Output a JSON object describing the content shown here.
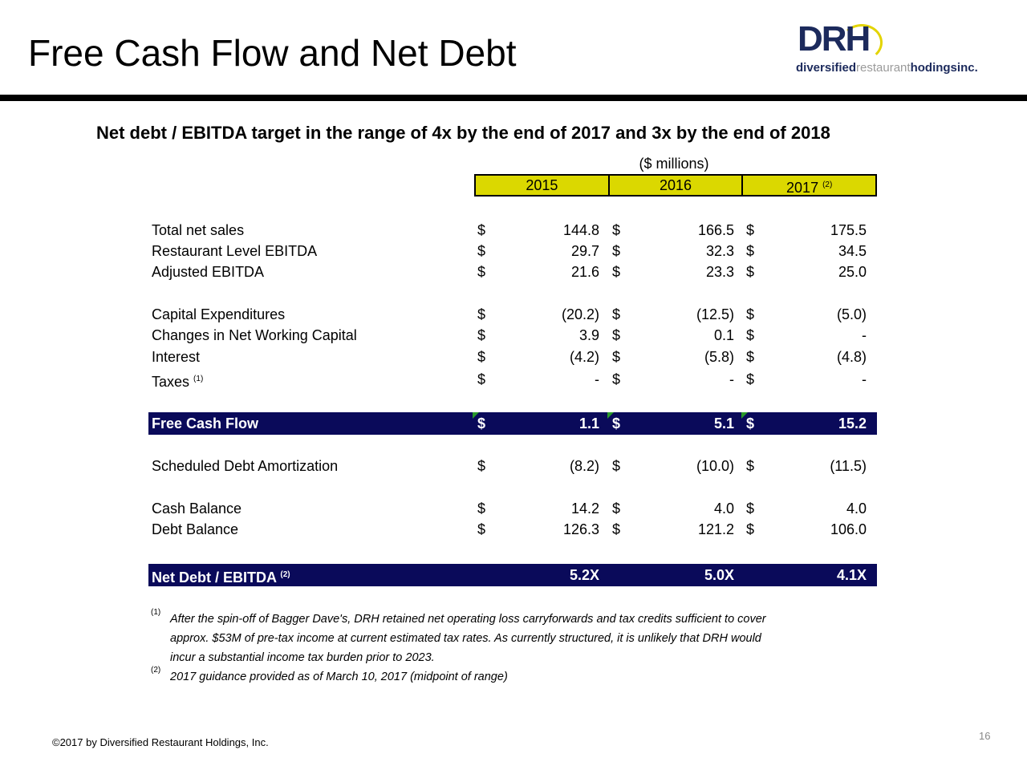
{
  "title": "Free Cash Flow and Net Debt",
  "logo": {
    "brand": "DRH",
    "word1": "diversified",
    "word2": "restaurant",
    "word3": "ho",
    "word4": "dingsinc."
  },
  "subtitle": "Net debt / EBITDA target in the range of 4x by the end of 2017 and 3x by the end of 2018",
  "units": "($ millions)",
  "years": [
    "2015",
    "2016",
    "2017"
  ],
  "year_note": "(2)",
  "rows": [
    {
      "label": "Total net sales",
      "values": [
        "144.8",
        "166.5",
        "175.5"
      ]
    },
    {
      "label": "Restaurant Level EBITDA",
      "values": [
        "29.7",
        "32.3",
        "34.5"
      ]
    },
    {
      "label": "Adjusted EBITDA",
      "values": [
        "21.6",
        "23.3",
        "25.0"
      ]
    },
    {
      "label": "Capital Expenditures",
      "values": [
        "(20.2)",
        "(12.5)",
        "(5.0)"
      ]
    },
    {
      "label": "Changes in Net Working Capital",
      "values": [
        "3.9",
        "0.1",
        "-"
      ]
    },
    {
      "label": "Interest",
      "values": [
        "(4.2)",
        "(5.8)",
        "(4.8)"
      ]
    },
    {
      "label": "Taxes",
      "note": "(1)",
      "values": [
        "-",
        "-",
        "-"
      ]
    },
    {
      "label": "Free Cash Flow",
      "values": [
        "1.1",
        "5.1",
        "15.2"
      ]
    },
    {
      "label": "Scheduled Debt Amortization",
      "values": [
        "(8.2)",
        "(10.0)",
        "(11.5)"
      ]
    },
    {
      "label": "Cash Balance",
      "values": [
        "14.2",
        "4.0",
        "4.0"
      ]
    },
    {
      "label": "Debt Balance",
      "values": [
        "126.3",
        "121.2",
        "106.0"
      ]
    },
    {
      "label": "Net Debt / EBITDA",
      "note": "(2)",
      "values": [
        "5.2X",
        "5.0X",
        "4.1X"
      ]
    }
  ],
  "currency": "$",
  "footnotes": [
    {
      "mark": "(1)",
      "lines": [
        "After the spin-off of Bagger Dave's, DRH retained net operating loss carryforwards and tax credits sufficient to cover",
        "approx. $53M of pre-tax income at current estimated tax rates.  As currently structured, it is unlikely that DRH would",
        "incur a substantial income tax burden prior to 2023."
      ]
    },
    {
      "mark": "(2)",
      "lines": [
        "2017 guidance provided as of March 10, 2017 (midpoint of range)"
      ]
    }
  ],
  "page_number": "16",
  "copyright": "©2017 by Diversified Restaurant Holdings, Inc."
}
